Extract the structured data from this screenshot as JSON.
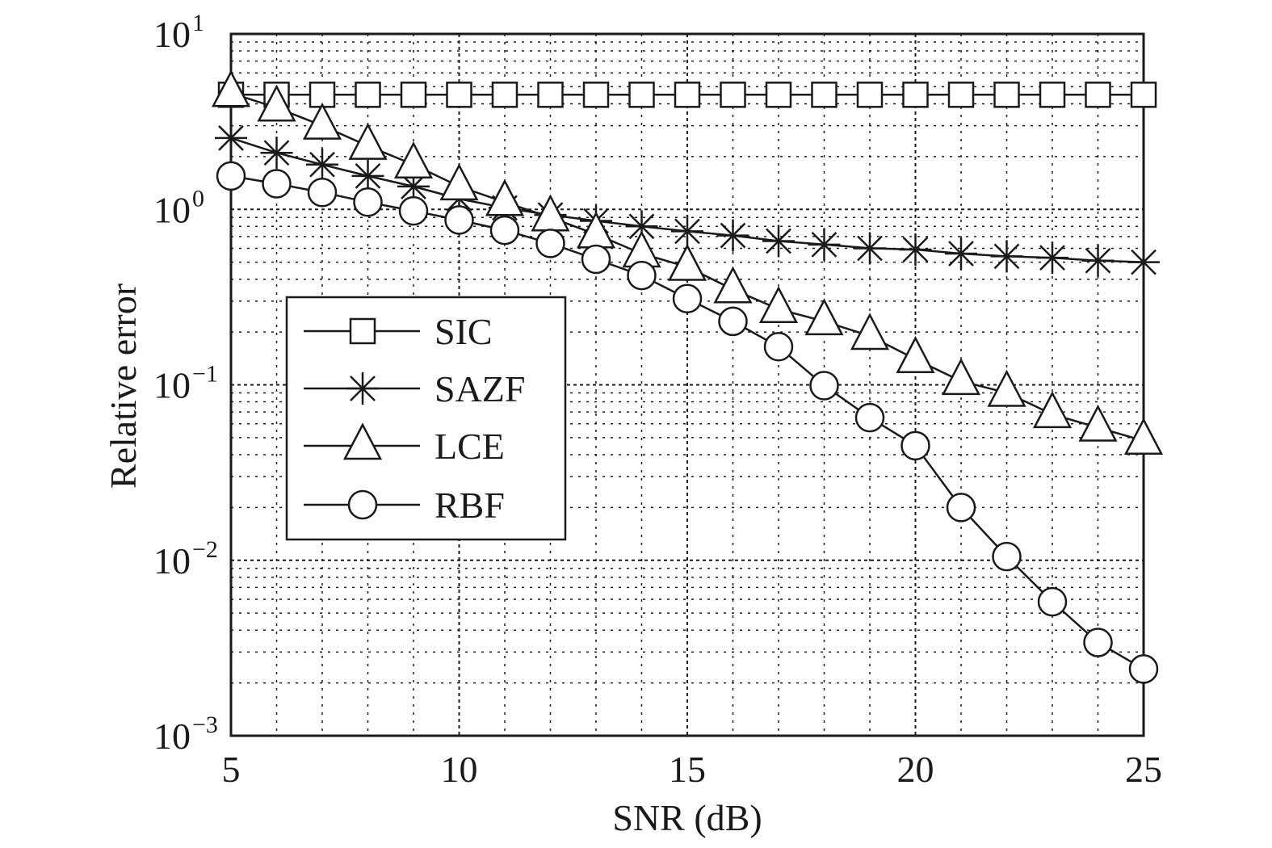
{
  "chart_data": {
    "type": "line",
    "title": "",
    "xlabel": "SNR (dB)",
    "ylabel": "Relative error",
    "xlim": [
      5,
      25
    ],
    "ylim": [
      0.001,
      10
    ],
    "yscale": "log",
    "grid": true,
    "legend_position": "center-left",
    "x": [
      5,
      6,
      7,
      8,
      9,
      10,
      11,
      12,
      13,
      14,
      15,
      16,
      17,
      18,
      19,
      20,
      21,
      22,
      23,
      24,
      25
    ],
    "xticks": [
      {
        "value": 5,
        "label": "5"
      },
      {
        "value": 10,
        "label": "10"
      },
      {
        "value": 15,
        "label": "15"
      },
      {
        "value": 20,
        "label": "20"
      },
      {
        "value": 25,
        "label": "25"
      }
    ],
    "yticks": [
      {
        "value": 0.001,
        "base": "10",
        "exp": "−3"
      },
      {
        "value": 0.01,
        "base": "10",
        "exp": "−2"
      },
      {
        "value": 0.1,
        "base": "10",
        "exp": "−1"
      },
      {
        "value": 1,
        "base": "10",
        "exp": "0"
      },
      {
        "value": 10,
        "base": "10",
        "exp": "1"
      }
    ],
    "series": [
      {
        "name": "SIC",
        "marker": "square",
        "values": [
          4.5,
          4.5,
          4.5,
          4.5,
          4.5,
          4.5,
          4.5,
          4.5,
          4.5,
          4.5,
          4.5,
          4.5,
          4.5,
          4.5,
          4.5,
          4.5,
          4.5,
          4.5,
          4.5,
          4.5,
          4.5
        ]
      },
      {
        "name": "SAZF",
        "marker": "asterisk",
        "values": [
          2.55,
          2.1,
          1.8,
          1.55,
          1.35,
          1.15,
          1.02,
          0.93,
          0.86,
          0.8,
          0.75,
          0.71,
          0.66,
          0.63,
          0.6,
          0.59,
          0.56,
          0.54,
          0.53,
          0.51,
          0.5
        ]
      },
      {
        "name": "LCE",
        "marker": "triangle",
        "values": [
          4.6,
          3.8,
          3.0,
          2.3,
          1.8,
          1.35,
          1.1,
          0.9,
          0.72,
          0.56,
          0.47,
          0.35,
          0.27,
          0.23,
          0.19,
          0.14,
          0.105,
          0.09,
          0.068,
          0.057,
          0.048
        ]
      },
      {
        "name": "RBF",
        "marker": "circle",
        "values": [
          1.55,
          1.4,
          1.25,
          1.1,
          0.98,
          0.87,
          0.76,
          0.64,
          0.52,
          0.42,
          0.31,
          0.23,
          0.165,
          0.099,
          0.065,
          0.045,
          0.02,
          0.0105,
          0.0058,
          0.0034,
          0.0024
        ]
      }
    ],
    "colors": {
      "line": "#1a1a1a",
      "grid": "#1a1a1a",
      "background": "#ffffff"
    }
  }
}
